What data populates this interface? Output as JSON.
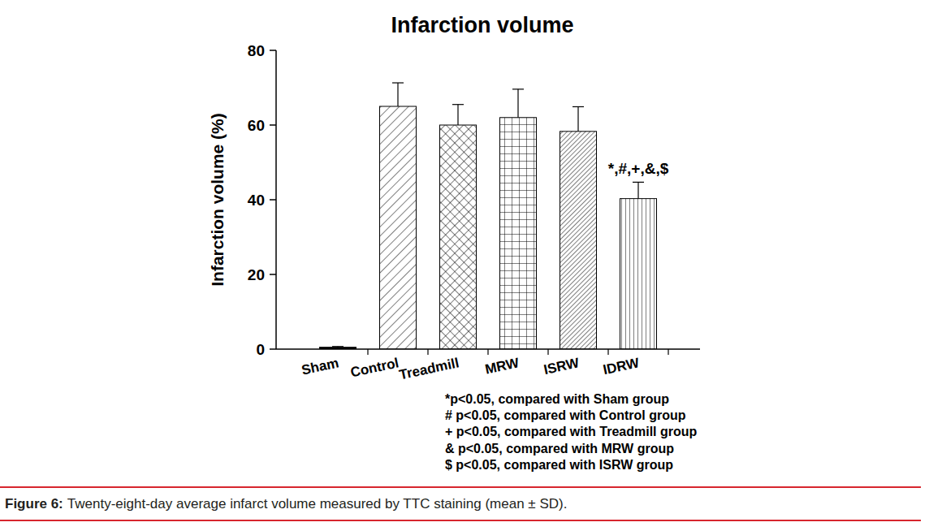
{
  "chart_data": {
    "type": "bar",
    "title": "Infarction volume",
    "y_label": "Infarction volume (%)",
    "categories": [
      "Sham",
      "Control",
      "Treadmill",
      "MRW",
      "ISRW",
      "IDRW"
    ],
    "values": [
      0.5,
      65,
      60,
      62,
      58.3,
      40.3
    ],
    "errors": [
      0.2,
      6.3,
      5.5,
      7.6,
      6.6,
      4.4
    ],
    "color": "#000000",
    "ylim": [
      0,
      80
    ],
    "yticks": [
      0,
      20,
      40,
      60,
      80
    ],
    "grid": false,
    "annotations": [
      {
        "text": "*,#,+,&,$",
        "category": "IDRW"
      }
    ],
    "notes": [
      "*p<0.05, compared with Sham group",
      "# p<0.05, compared with Control group",
      "+ p<0.05, compared with Treadmill group",
      "& p<0.05, compared with MRW group",
      "$ p<0.05, compared with ISRW group"
    ],
    "caption_label": "Figure 6:",
    "caption": "Twenty-eight-day average infarct volume measured by TTC staining (mean ± SD)."
  }
}
